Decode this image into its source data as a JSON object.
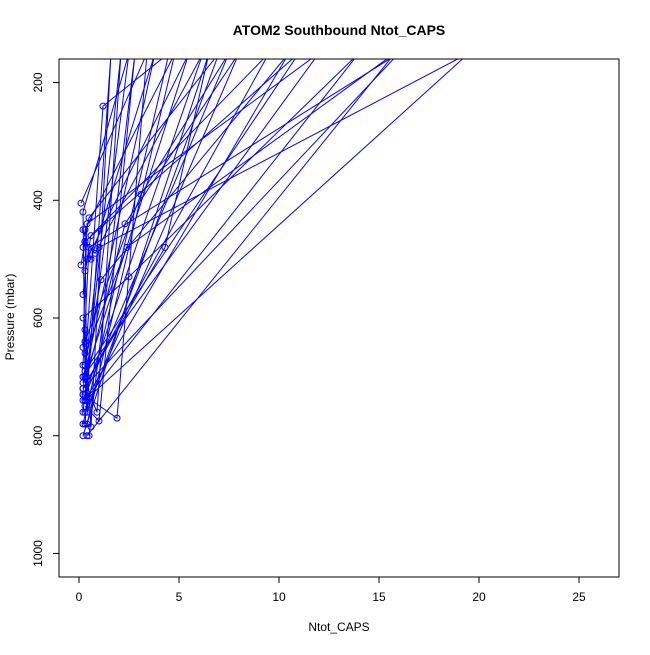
{
  "chart_data": {
    "type": "line",
    "title": "ATOM2 Southbound Ntot_CAPS",
    "xlabel": "Ntot_CAPS",
    "ylabel": "Pressure (mbar)",
    "xlim": [
      -1,
      27
    ],
    "ylim": [
      1040,
      160
    ],
    "y_reversed": true,
    "x_ticks": [
      0,
      5,
      10,
      15,
      20,
      25
    ],
    "y_ticks": [
      200,
      400,
      600,
      800,
      1000
    ],
    "grid": false,
    "legend": "none",
    "series_color": "#0000ff",
    "series": [
      {
        "values": [
          {
            "x": 0.3,
            "y": 700
          },
          {
            "x": 0.2,
            "y": 420
          },
          {
            "x": 2.5,
            "y": 150
          },
          {
            "x": 0.3,
            "y": 730
          }
        ]
      },
      {
        "values": [
          {
            "x": 0.4,
            "y": 740
          },
          {
            "x": 0.3,
            "y": 450
          },
          {
            "x": 4.8,
            "y": 150
          },
          {
            "x": 0.4,
            "y": 780
          }
        ]
      },
      {
        "values": [
          {
            "x": 0.2,
            "y": 680
          },
          {
            "x": 0.5,
            "y": 480
          },
          {
            "x": 16.0,
            "y": 150
          },
          {
            "x": 0.2,
            "y": 720
          }
        ]
      },
      {
        "values": [
          {
            "x": 0.3,
            "y": 690
          },
          {
            "x": 1.0,
            "y": 480
          },
          {
            "x": 19.5,
            "y": 150
          },
          {
            "x": 0.3,
            "y": 740
          }
        ]
      },
      {
        "values": [
          {
            "x": 0.2,
            "y": 650
          },
          {
            "x": 0.4,
            "y": 440
          },
          {
            "x": 12.0,
            "y": 150
          },
          {
            "x": 0.2,
            "y": 700
          }
        ]
      },
      {
        "values": [
          {
            "x": 0.2,
            "y": 730
          },
          {
            "x": 1.2,
            "y": 240
          },
          {
            "x": 4.5,
            "y": 150
          },
          {
            "x": 0.2,
            "y": 780
          }
        ]
      },
      {
        "values": [
          {
            "x": 0.3,
            "y": 660
          },
          {
            "x": 2.4,
            "y": 480
          },
          {
            "x": 15.8,
            "y": 150
          },
          {
            "x": 0.4,
            "y": 800
          }
        ]
      },
      {
        "values": [
          {
            "x": 0.4,
            "y": 700
          },
          {
            "x": 2.3,
            "y": 440
          },
          {
            "x": 8.0,
            "y": 150
          },
          {
            "x": 0.3,
            "y": 760
          }
        ]
      },
      {
        "values": [
          {
            "x": 0.3,
            "y": 640
          },
          {
            "x": 3.1,
            "y": 390
          },
          {
            "x": 7.5,
            "y": 150
          },
          {
            "x": 0.2,
            "y": 740
          }
        ]
      },
      {
        "values": [
          {
            "x": 0.2,
            "y": 720
          },
          {
            "x": 4.3,
            "y": 480
          },
          {
            "x": 6.5,
            "y": 150
          },
          {
            "x": 0.2,
            "y": 800
          }
        ]
      },
      {
        "values": [
          {
            "x": 0.2,
            "y": 600
          },
          {
            "x": 2.5,
            "y": 530
          },
          {
            "x": 14.0,
            "y": 150
          },
          {
            "x": 0.3,
            "y": 740
          }
        ]
      },
      {
        "values": [
          {
            "x": 0.3,
            "y": 680
          },
          {
            "x": 1.1,
            "y": 535
          },
          {
            "x": 10.5,
            "y": 150
          },
          {
            "x": 0.3,
            "y": 740
          }
        ]
      },
      {
        "values": [
          {
            "x": 0.2,
            "y": 730
          },
          {
            "x": 1.9,
            "y": 770
          },
          {
            "x": 3.4,
            "y": 150
          },
          {
            "x": 0.1,
            "y": 405
          }
        ]
      },
      {
        "values": [
          {
            "x": 0.3,
            "y": 750
          },
          {
            "x": 1.0,
            "y": 775
          },
          {
            "x": 2.8,
            "y": 150
          },
          {
            "x": 0.5,
            "y": 800
          }
        ]
      },
      {
        "values": [
          {
            "x": 0.2,
            "y": 700
          },
          {
            "x": 0.9,
            "y": 760
          },
          {
            "x": 2.1,
            "y": 150
          },
          {
            "x": 0.2,
            "y": 760
          }
        ]
      },
      {
        "values": [
          {
            "x": 0.3,
            "y": 620
          },
          {
            "x": 0.6,
            "y": 785
          },
          {
            "x": 1.6,
            "y": 150
          },
          {
            "x": 0.3,
            "y": 780
          }
        ]
      },
      {
        "values": [
          {
            "x": 0.2,
            "y": 560
          },
          {
            "x": 0.4,
            "y": 500
          },
          {
            "x": 5.5,
            "y": 150
          },
          {
            "x": 0.3,
            "y": 700
          }
        ]
      },
      {
        "values": [
          {
            "x": 0.3,
            "y": 520
          },
          {
            "x": 0.6,
            "y": 460
          },
          {
            "x": 9.5,
            "y": 150
          },
          {
            "x": 0.2,
            "y": 720
          }
        ]
      },
      {
        "values": [
          {
            "x": 0.2,
            "y": 480
          },
          {
            "x": 0.5,
            "y": 430
          },
          {
            "x": 7.0,
            "y": 150
          },
          {
            "x": 0.4,
            "y": 760
          }
        ]
      },
      {
        "values": [
          {
            "x": 0.1,
            "y": 510
          },
          {
            "x": 0.3,
            "y": 470
          },
          {
            "x": 11.0,
            "y": 150
          },
          {
            "x": 0.3,
            "y": 690
          }
        ]
      },
      {
        "values": [
          {
            "x": 0.2,
            "y": 450
          },
          {
            "x": 0.6,
            "y": 500
          },
          {
            "x": 3.8,
            "y": 150
          },
          {
            "x": 0.2,
            "y": 710
          }
        ]
      },
      {
        "values": [
          {
            "x": 0.3,
            "y": 470
          },
          {
            "x": 0.8,
            "y": 490
          },
          {
            "x": 6.2,
            "y": 150
          },
          {
            "x": 0.3,
            "y": 730
          }
        ]
      }
    ]
  }
}
